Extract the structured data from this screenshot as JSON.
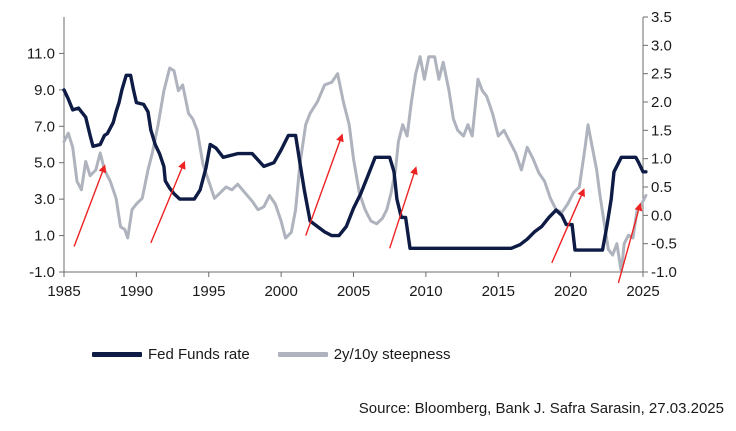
{
  "chart_data": {
    "type": "line",
    "title": "",
    "xlabel": "",
    "ylabel_left": "",
    "ylabel_right": "",
    "x_ticks": [
      1985,
      1990,
      1995,
      2000,
      2005,
      2010,
      2015,
      2020,
      2025
    ],
    "x_tick_labels": [
      "1985",
      "1990",
      "1995",
      "2000",
      "2005",
      "2010",
      "2015",
      "2020",
      "2025"
    ],
    "xlim": [
      1985,
      2025
    ],
    "ylim_left": [
      -1.0,
      13.0
    ],
    "y_left_ticks": [
      -1.0,
      1.0,
      3.0,
      5.0,
      7.0,
      9.0,
      11.0
    ],
    "y_left_tick_labels": [
      "-1.0",
      "1.0",
      "3.0",
      "5.0",
      "7.0",
      "9.0",
      "11.0"
    ],
    "ylim_right": [
      -1.0,
      3.5
    ],
    "y_right_ticks": [
      -1.0,
      -0.5,
      0.0,
      0.5,
      1.0,
      1.5,
      2.0,
      2.5,
      3.0,
      3.5
    ],
    "y_right_tick_labels": [
      "-1.0",
      "-0.5",
      "0.0",
      "0.5",
      "1.0",
      "1.5",
      "2.0",
      "2.5",
      "3.0",
      "3.5"
    ],
    "series": [
      {
        "name": "Fed Funds rate",
        "axis": "left",
        "color": "#0d1b45",
        "points": [
          [
            1985.0,
            9.0
          ],
          [
            1985.3,
            8.5
          ],
          [
            1985.6,
            7.9
          ],
          [
            1986.0,
            8.0
          ],
          [
            1986.5,
            7.5
          ],
          [
            1986.8,
            6.5
          ],
          [
            1987.0,
            5.9
          ],
          [
            1987.5,
            6.0
          ],
          [
            1987.8,
            6.5
          ],
          [
            1988.0,
            6.6
          ],
          [
            1988.2,
            6.9
          ],
          [
            1988.4,
            7.2
          ],
          [
            1988.6,
            7.8
          ],
          [
            1988.8,
            8.3
          ],
          [
            1989.0,
            9.0
          ],
          [
            1989.3,
            9.8
          ],
          [
            1989.6,
            9.8
          ],
          [
            1989.8,
            9.0
          ],
          [
            1990.0,
            8.3
          ],
          [
            1990.5,
            8.2
          ],
          [
            1990.8,
            7.8
          ],
          [
            1991.0,
            6.8
          ],
          [
            1991.3,
            6.0
          ],
          [
            1991.6,
            5.5
          ],
          [
            1991.9,
            4.8
          ],
          [
            1992.0,
            4.0
          ],
          [
            1992.3,
            3.6
          ],
          [
            1992.6,
            3.3
          ],
          [
            1993.0,
            3.0
          ],
          [
            1994.0,
            3.0
          ],
          [
            1994.4,
            3.5
          ],
          [
            1994.8,
            4.7
          ],
          [
            1995.1,
            6.0
          ],
          [
            1995.5,
            5.8
          ],
          [
            1996.0,
            5.3
          ],
          [
            1997.0,
            5.5
          ],
          [
            1998.0,
            5.5
          ],
          [
            1998.8,
            4.8
          ],
          [
            1999.5,
            5.0
          ],
          [
            2000.0,
            5.7
          ],
          [
            2000.5,
            6.5
          ],
          [
            2001.0,
            6.5
          ],
          [
            2001.3,
            5.0
          ],
          [
            2001.6,
            3.5
          ],
          [
            2002.0,
            1.8
          ],
          [
            2003.0,
            1.2
          ],
          [
            2003.5,
            1.0
          ],
          [
            2004.0,
            1.0
          ],
          [
            2004.5,
            1.5
          ],
          [
            2005.0,
            2.5
          ],
          [
            2005.5,
            3.3
          ],
          [
            2006.0,
            4.3
          ],
          [
            2006.5,
            5.3
          ],
          [
            2007.5,
            5.3
          ],
          [
            2007.8,
            4.5
          ],
          [
            2008.0,
            3.0
          ],
          [
            2008.3,
            2.0
          ],
          [
            2008.6,
            2.0
          ],
          [
            2008.9,
            0.3
          ],
          [
            2015.9,
            0.3
          ],
          [
            2016.5,
            0.5
          ],
          [
            2017.0,
            0.8
          ],
          [
            2017.5,
            1.2
          ],
          [
            2018.0,
            1.5
          ],
          [
            2018.5,
            2.0
          ],
          [
            2019.0,
            2.4
          ],
          [
            2019.4,
            2.1
          ],
          [
            2019.7,
            1.6
          ],
          [
            2020.1,
            1.6
          ],
          [
            2020.3,
            0.2
          ],
          [
            2022.2,
            0.2
          ],
          [
            2022.5,
            1.5
          ],
          [
            2022.8,
            3.0
          ],
          [
            2023.0,
            4.5
          ],
          [
            2023.5,
            5.3
          ],
          [
            2024.5,
            5.3
          ],
          [
            2024.7,
            5.0
          ],
          [
            2025.0,
            4.5
          ],
          [
            2025.2,
            4.5
          ]
        ]
      },
      {
        "name": "2y/10y steepness",
        "axis": "right",
        "color": "#aeb3bd",
        "points": [
          [
            1985.0,
            1.3
          ],
          [
            1985.3,
            1.45
          ],
          [
            1985.6,
            1.2
          ],
          [
            1985.9,
            0.6
          ],
          [
            1986.2,
            0.45
          ],
          [
            1986.5,
            0.95
          ],
          [
            1986.8,
            0.7
          ],
          [
            1987.2,
            0.8
          ],
          [
            1987.5,
            1.1
          ],
          [
            1987.8,
            0.8
          ],
          [
            1988.2,
            0.6
          ],
          [
            1988.6,
            0.3
          ],
          [
            1988.9,
            -0.2
          ],
          [
            1989.2,
            -0.25
          ],
          [
            1989.4,
            -0.4
          ],
          [
            1989.7,
            0.1
          ],
          [
            1990.0,
            0.2
          ],
          [
            1990.4,
            0.3
          ],
          [
            1990.8,
            0.8
          ],
          [
            1991.1,
            1.1
          ],
          [
            1991.5,
            1.6
          ],
          [
            1991.9,
            2.2
          ],
          [
            1992.3,
            2.6
          ],
          [
            1992.6,
            2.55
          ],
          [
            1992.9,
            2.2
          ],
          [
            1993.2,
            2.3
          ],
          [
            1993.6,
            1.8
          ],
          [
            1993.9,
            1.7
          ],
          [
            1994.2,
            1.5
          ],
          [
            1994.6,
            0.9
          ],
          [
            1995.0,
            0.6
          ],
          [
            1995.4,
            0.3
          ],
          [
            1995.8,
            0.4
          ],
          [
            1996.2,
            0.5
          ],
          [
            1996.6,
            0.45
          ],
          [
            1997.0,
            0.55
          ],
          [
            1997.5,
            0.4
          ],
          [
            1998.0,
            0.25
          ],
          [
            1998.4,
            0.1
          ],
          [
            1998.8,
            0.15
          ],
          [
            1999.2,
            0.35
          ],
          [
            1999.6,
            0.2
          ],
          [
            2000.0,
            -0.1
          ],
          [
            2000.3,
            -0.4
          ],
          [
            2000.7,
            -0.3
          ],
          [
            2001.0,
            0.1
          ],
          [
            2001.3,
            0.9
          ],
          [
            2001.7,
            1.6
          ],
          [
            2002.0,
            1.8
          ],
          [
            2002.5,
            2.0
          ],
          [
            2003.0,
            2.3
          ],
          [
            2003.5,
            2.35
          ],
          [
            2003.9,
            2.5
          ],
          [
            2004.3,
            2.0
          ],
          [
            2004.7,
            1.6
          ],
          [
            2005.0,
            1.0
          ],
          [
            2005.4,
            0.4
          ],
          [
            2005.8,
            0.1
          ],
          [
            2006.2,
            -0.1
          ],
          [
            2006.6,
            -0.15
          ],
          [
            2007.0,
            -0.05
          ],
          [
            2007.3,
            0.1
          ],
          [
            2007.6,
            0.4
          ],
          [
            2007.9,
            0.8
          ],
          [
            2008.1,
            1.3
          ],
          [
            2008.4,
            1.6
          ],
          [
            2008.7,
            1.4
          ],
          [
            2009.0,
            2.0
          ],
          [
            2009.3,
            2.5
          ],
          [
            2009.6,
            2.8
          ],
          [
            2009.9,
            2.4
          ],
          [
            2010.2,
            2.8
          ],
          [
            2010.6,
            2.8
          ],
          [
            2010.9,
            2.4
          ],
          [
            2011.2,
            2.7
          ],
          [
            2011.6,
            2.2
          ],
          [
            2011.9,
            1.7
          ],
          [
            2012.2,
            1.5
          ],
          [
            2012.6,
            1.4
          ],
          [
            2012.9,
            1.6
          ],
          [
            2013.2,
            1.4
          ],
          [
            2013.6,
            2.4
          ],
          [
            2013.9,
            2.2
          ],
          [
            2014.2,
            2.1
          ],
          [
            2014.6,
            1.8
          ],
          [
            2015.0,
            1.4
          ],
          [
            2015.4,
            1.5
          ],
          [
            2015.8,
            1.3
          ],
          [
            2016.2,
            1.1
          ],
          [
            2016.6,
            0.8
          ],
          [
            2017.0,
            1.2
          ],
          [
            2017.4,
            1.0
          ],
          [
            2017.8,
            0.75
          ],
          [
            2018.2,
            0.6
          ],
          [
            2018.6,
            0.3
          ],
          [
            2019.0,
            0.1
          ],
          [
            2019.4,
            0.05
          ],
          [
            2019.8,
            0.2
          ],
          [
            2020.2,
            0.4
          ],
          [
            2020.6,
            0.5
          ],
          [
            2021.0,
            1.2
          ],
          [
            2021.2,
            1.6
          ],
          [
            2021.5,
            1.2
          ],
          [
            2021.8,
            0.8
          ],
          [
            2022.0,
            0.4
          ],
          [
            2022.3,
            -0.1
          ],
          [
            2022.6,
            -0.6
          ],
          [
            2022.9,
            -0.7
          ],
          [
            2023.2,
            -0.5
          ],
          [
            2023.5,
            -1.0
          ],
          [
            2023.7,
            -0.5
          ],
          [
            2024.0,
            -0.35
          ],
          [
            2024.3,
            -0.4
          ],
          [
            2024.6,
            0.1
          ],
          [
            2024.9,
            0.2
          ],
          [
            2025.2,
            0.35
          ]
        ]
      }
    ],
    "annotations": [
      {
        "type": "arrow",
        "color": "#ee2222",
        "from": [
          1985.7,
          0.4
        ],
        "to": [
          1987.8,
          4.8
        ],
        "axis": "left"
      },
      {
        "type": "arrow",
        "color": "#ee2222",
        "from": [
          1991.0,
          0.6
        ],
        "to": [
          1993.3,
          5.0
        ],
        "axis": "left"
      },
      {
        "type": "arrow",
        "color": "#ee2222",
        "from": [
          2001.7,
          1.0
        ],
        "to": [
          2004.2,
          6.5
        ],
        "axis": "left"
      },
      {
        "type": "arrow",
        "color": "#ee2222",
        "from": [
          2007.5,
          0.3
        ],
        "to": [
          2009.3,
          4.7
        ],
        "axis": "left"
      },
      {
        "type": "arrow",
        "color": "#ee2222",
        "from": [
          2018.7,
          -0.5
        ],
        "to": [
          2020.9,
          3.5
        ],
        "axis": "left"
      },
      {
        "type": "arrow",
        "color": "#ee2222",
        "from": [
          2023.3,
          -1.6
        ],
        "to": [
          2024.8,
          2.7
        ],
        "axis": "left"
      }
    ],
    "legend": [
      {
        "name": "Fed Funds rate",
        "color": "#0d1b45"
      },
      {
        "name": "2y/10y steepness",
        "color": "#aeb3bd"
      }
    ],
    "legend_position": "bottom-left",
    "grid": false
  },
  "source_text": "Source: Bloomberg, Bank J. Safra Sarasin, 27.03.2025"
}
